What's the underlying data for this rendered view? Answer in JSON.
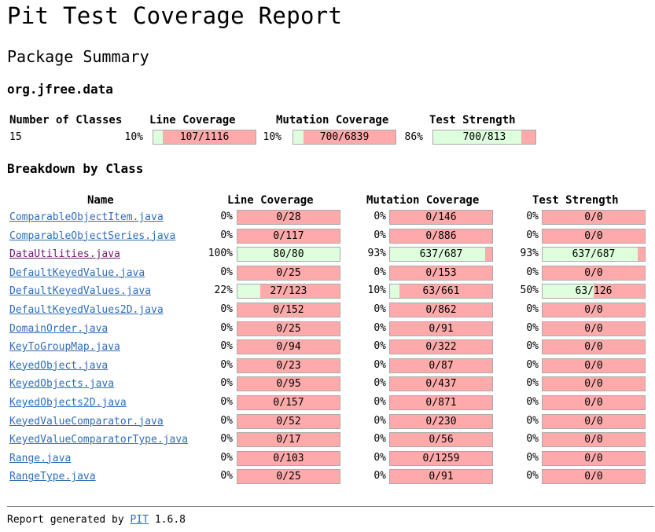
{
  "page": {
    "title": "Pit Test Coverage Report",
    "subtitle": "Package Summary",
    "package_name": "org.jfree.data",
    "breakdown_heading": "Breakdown by Class"
  },
  "colors": {
    "covered": "#ddffdd",
    "uncovered": "#ffaaaa",
    "link": "#2f6db7",
    "visited_link": "#6e1b6e"
  },
  "summary": {
    "headers": {
      "classes": "Number of Classes",
      "line": "Line Coverage",
      "mutation": "Mutation Coverage",
      "strength": "Test Strength"
    },
    "classes": "15",
    "line": {
      "pct": "10%",
      "text": "107/1116",
      "covered": 107,
      "total": 1116
    },
    "mutation": {
      "pct": "10%",
      "text": "700/6839",
      "covered": 700,
      "total": 6839
    },
    "strength": {
      "pct": "86%",
      "text": "700/813",
      "covered": 700,
      "total": 813
    }
  },
  "breakdown": {
    "headers": {
      "name": "Name",
      "line": "Line Coverage",
      "mutation": "Mutation Coverage",
      "strength": "Test Strength"
    },
    "rows": [
      {
        "name": "ComparableObjectItem.java",
        "line": {
          "pct": "0%",
          "text": "0/28",
          "covered": 0,
          "total": 28
        },
        "mutation": {
          "pct": "0%",
          "text": "0/146",
          "covered": 0,
          "total": 146
        },
        "strength": {
          "pct": "0%",
          "text": "0/0",
          "covered": 0,
          "total": 0
        }
      },
      {
        "name": "ComparableObjectSeries.java",
        "line": {
          "pct": "0%",
          "text": "0/117",
          "covered": 0,
          "total": 117
        },
        "mutation": {
          "pct": "0%",
          "text": "0/886",
          "covered": 0,
          "total": 886
        },
        "strength": {
          "pct": "0%",
          "text": "0/0",
          "covered": 0,
          "total": 0
        }
      },
      {
        "name": "DataUtilities.java",
        "visited": true,
        "line": {
          "pct": "100%",
          "text": "80/80",
          "covered": 80,
          "total": 80
        },
        "mutation": {
          "pct": "93%",
          "text": "637/687",
          "covered": 637,
          "total": 687
        },
        "strength": {
          "pct": "93%",
          "text": "637/687",
          "covered": 637,
          "total": 687
        }
      },
      {
        "name": "DefaultKeyedValue.java",
        "line": {
          "pct": "0%",
          "text": "0/25",
          "covered": 0,
          "total": 25
        },
        "mutation": {
          "pct": "0%",
          "text": "0/153",
          "covered": 0,
          "total": 153
        },
        "strength": {
          "pct": "0%",
          "text": "0/0",
          "covered": 0,
          "total": 0
        }
      },
      {
        "name": "DefaultKeyedValues.java",
        "line": {
          "pct": "22%",
          "text": "27/123",
          "covered": 27,
          "total": 123
        },
        "mutation": {
          "pct": "10%",
          "text": "63/661",
          "covered": 63,
          "total": 661
        },
        "strength": {
          "pct": "50%",
          "text": "63/126",
          "covered": 63,
          "total": 126
        }
      },
      {
        "name": "DefaultKeyedValues2D.java",
        "line": {
          "pct": "0%",
          "text": "0/152",
          "covered": 0,
          "total": 152
        },
        "mutation": {
          "pct": "0%",
          "text": "0/862",
          "covered": 0,
          "total": 862
        },
        "strength": {
          "pct": "0%",
          "text": "0/0",
          "covered": 0,
          "total": 0
        }
      },
      {
        "name": "DomainOrder.java",
        "line": {
          "pct": "0%",
          "text": "0/25",
          "covered": 0,
          "total": 25
        },
        "mutation": {
          "pct": "0%",
          "text": "0/91",
          "covered": 0,
          "total": 91
        },
        "strength": {
          "pct": "0%",
          "text": "0/0",
          "covered": 0,
          "total": 0
        }
      },
      {
        "name": "KeyToGroupMap.java",
        "line": {
          "pct": "0%",
          "text": "0/94",
          "covered": 0,
          "total": 94
        },
        "mutation": {
          "pct": "0%",
          "text": "0/322",
          "covered": 0,
          "total": 322
        },
        "strength": {
          "pct": "0%",
          "text": "0/0",
          "covered": 0,
          "total": 0
        }
      },
      {
        "name": "KeyedObject.java",
        "line": {
          "pct": "0%",
          "text": "0/23",
          "covered": 0,
          "total": 23
        },
        "mutation": {
          "pct": "0%",
          "text": "0/87",
          "covered": 0,
          "total": 87
        },
        "strength": {
          "pct": "0%",
          "text": "0/0",
          "covered": 0,
          "total": 0
        }
      },
      {
        "name": "KeyedObjects.java",
        "line": {
          "pct": "0%",
          "text": "0/95",
          "covered": 0,
          "total": 95
        },
        "mutation": {
          "pct": "0%",
          "text": "0/437",
          "covered": 0,
          "total": 437
        },
        "strength": {
          "pct": "0%",
          "text": "0/0",
          "covered": 0,
          "total": 0
        }
      },
      {
        "name": "KeyedObjects2D.java",
        "line": {
          "pct": "0%",
          "text": "0/157",
          "covered": 0,
          "total": 157
        },
        "mutation": {
          "pct": "0%",
          "text": "0/871",
          "covered": 0,
          "total": 871
        },
        "strength": {
          "pct": "0%",
          "text": "0/0",
          "covered": 0,
          "total": 0
        }
      },
      {
        "name": "KeyedValueComparator.java",
        "line": {
          "pct": "0%",
          "text": "0/52",
          "covered": 0,
          "total": 52
        },
        "mutation": {
          "pct": "0%",
          "text": "0/230",
          "covered": 0,
          "total": 230
        },
        "strength": {
          "pct": "0%",
          "text": "0/0",
          "covered": 0,
          "total": 0
        }
      },
      {
        "name": "KeyedValueComparatorType.java",
        "line": {
          "pct": "0%",
          "text": "0/17",
          "covered": 0,
          "total": 17
        },
        "mutation": {
          "pct": "0%",
          "text": "0/56",
          "covered": 0,
          "total": 56
        },
        "strength": {
          "pct": "0%",
          "text": "0/0",
          "covered": 0,
          "total": 0
        }
      },
      {
        "name": "Range.java",
        "line": {
          "pct": "0%",
          "text": "0/103",
          "covered": 0,
          "total": 103
        },
        "mutation": {
          "pct": "0%",
          "text": "0/1259",
          "covered": 0,
          "total": 1259
        },
        "strength": {
          "pct": "0%",
          "text": "0/0",
          "covered": 0,
          "total": 0
        }
      },
      {
        "name": "RangeType.java",
        "line": {
          "pct": "0%",
          "text": "0/25",
          "covered": 0,
          "total": 25
        },
        "mutation": {
          "pct": "0%",
          "text": "0/91",
          "covered": 0,
          "total": 91
        },
        "strength": {
          "pct": "0%",
          "text": "0/0",
          "covered": 0,
          "total": 0
        }
      }
    ]
  },
  "footer": {
    "prefix": "Report generated by",
    "link": "PIT",
    "version": "1.6.8"
  }
}
